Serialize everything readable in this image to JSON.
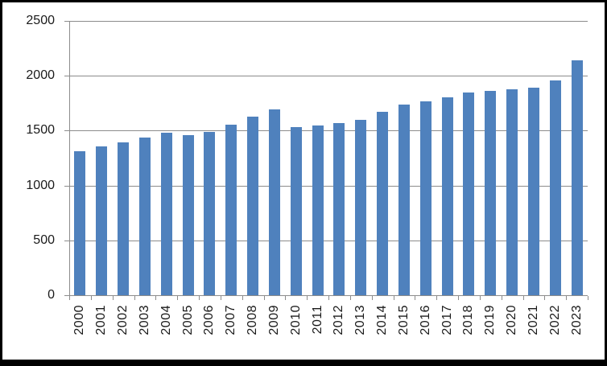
{
  "chart_data": {
    "type": "bar",
    "title": "",
    "categories": [
      "2000",
      "2001",
      "2002",
      "2003",
      "2004",
      "2005",
      "2006",
      "2007",
      "2008",
      "2009",
      "2010",
      "2011",
      "2012",
      "2013",
      "2014",
      "2015",
      "2016",
      "2017",
      "2018",
      "2019",
      "2020",
      "2021",
      "2022",
      "2023"
    ],
    "values": [
      1310,
      1355,
      1395,
      1435,
      1478,
      1460,
      1488,
      1555,
      1630,
      1690,
      1532,
      1545,
      1570,
      1595,
      1673,
      1735,
      1770,
      1803,
      1845,
      1865,
      1878,
      1890,
      1955,
      2139
    ],
    "ylim": [
      0,
      2500
    ],
    "ytick_interval": 500,
    "ytick_labels": [
      "0",
      "500",
      "1000",
      "1500",
      "2000",
      "2500"
    ],
    "grid": "horizontal",
    "legend": "none",
    "colors": {
      "bar_fill": "#4f81bd",
      "gridline": "#8c8c8c",
      "axis_line": "#8c8c8c",
      "label_text": "#1a1a1a",
      "background": "#ffffff",
      "frame": "#000000"
    }
  }
}
